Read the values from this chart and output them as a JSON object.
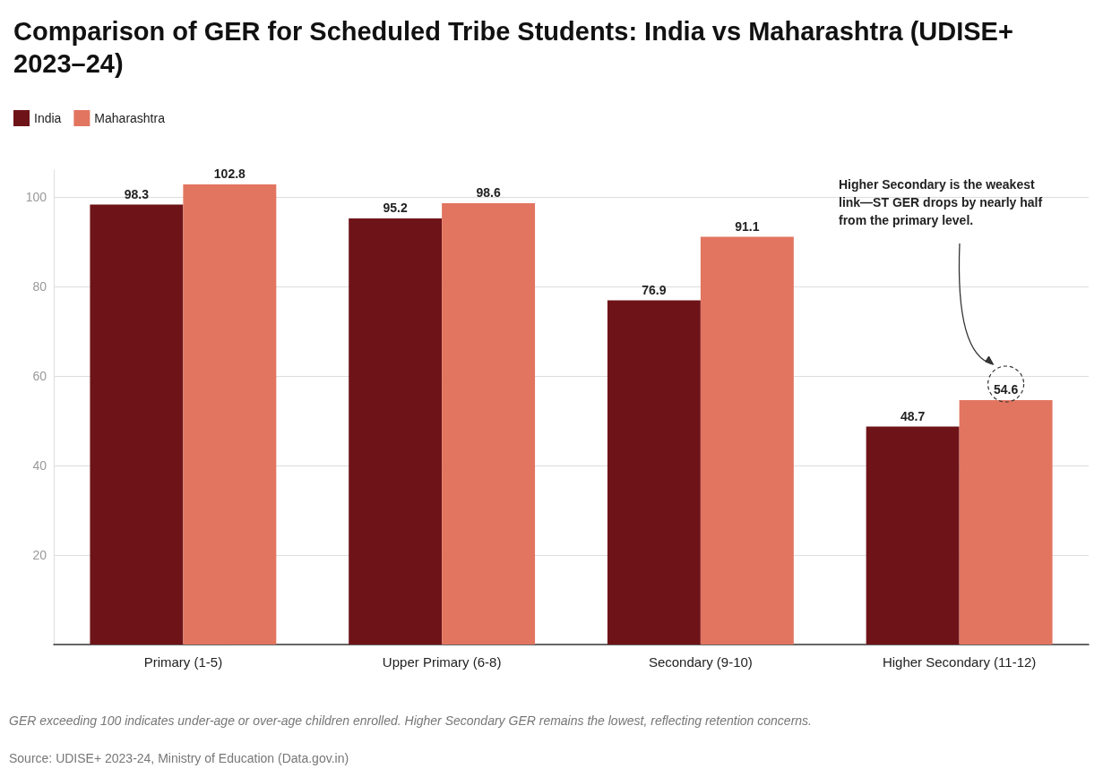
{
  "chart_data": {
    "type": "bar",
    "title": "Comparison of GER for Scheduled Tribe Students: India vs Maharashtra (UDISE+ 2023–24)",
    "categories": [
      "Primary (1-5)",
      "Upper Primary (6-8)",
      "Secondary (9-10)",
      "Higher Secondary (11-12)"
    ],
    "series": [
      {
        "name": "India",
        "color": "#6e1419",
        "values": [
          98.3,
          95.2,
          76.9,
          48.7
        ]
      },
      {
        "name": "Maharashtra",
        "color": "#e27560",
        "values": [
          102.8,
          98.6,
          91.1,
          54.6
        ]
      }
    ],
    "ylim": [
      0,
      106
    ],
    "yticks": [
      20,
      40,
      60,
      80,
      100
    ],
    "grid": "y",
    "legend": "top left",
    "data_labels": true,
    "annotations": [
      "Higher Secondary is the weakest link—ST GER drops by nearly half from the primary level.",
      "GER exceeding 100 indicates under-age or over-age children enrolled. Higher Secondary GER remains the lowest, reflecting retention concerns.",
      "Source: UDISE+ 2023-24, Ministry of Education (Data.gov.in)"
    ]
  }
}
